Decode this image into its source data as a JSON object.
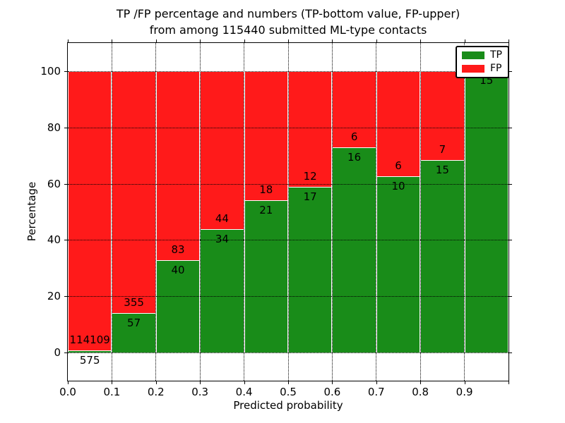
{
  "chart_data": {
    "type": "bar",
    "stacked": true,
    "normalized_to_percent": true,
    "title_line1": "TP /FP percentage and numbers (TP-bottom value, FP-upper)",
    "title_line2": "from among 115440 submitted ML-type contacts",
    "xlabel": "Predicted probability",
    "ylabel": "Percentage",
    "total_submitted": 115440,
    "x_tick_labels": [
      "0.0",
      "0.1",
      "0.2",
      "0.3",
      "0.4",
      "0.5",
      "0.6",
      "0.7",
      "0.8",
      "0.9"
    ],
    "y_ticks": [
      0,
      20,
      40,
      60,
      80,
      100
    ],
    "xlim": [
      0.0,
      1.0
    ],
    "ylim": [
      -10,
      110
    ],
    "bin_width": 0.1,
    "grid": "dotted-black-both-axes",
    "legend_position": "upper-right",
    "legend": [
      {
        "label": "TP",
        "color": "#198c19"
      },
      {
        "label": "FP",
        "color": "#ff1a1a"
      }
    ],
    "colors": {
      "tp": "#198c19",
      "fp": "#ff1a1a",
      "bar_edge": "#ffffff"
    },
    "bins": [
      {
        "range": [
          0.0,
          0.1
        ],
        "tp": 575,
        "fp": 114109
      },
      {
        "range": [
          0.1,
          0.2
        ],
        "tp": 57,
        "fp": 355
      },
      {
        "range": [
          0.2,
          0.3
        ],
        "tp": 40,
        "fp": 83
      },
      {
        "range": [
          0.3,
          0.4
        ],
        "tp": 34,
        "fp": 44
      },
      {
        "range": [
          0.4,
          0.5
        ],
        "tp": 21,
        "fp": 18
      },
      {
        "range": [
          0.5,
          0.6
        ],
        "tp": 17,
        "fp": 12
      },
      {
        "range": [
          0.6,
          0.7
        ],
        "tp": 16,
        "fp": 6
      },
      {
        "range": [
          0.7,
          0.8
        ],
        "tp": 10,
        "fp": 6
      },
      {
        "range": [
          0.8,
          0.9
        ],
        "tp": 15,
        "fp": 7
      },
      {
        "range": [
          0.9,
          1.0
        ],
        "tp": 15,
        "fp": 0
      }
    ]
  }
}
